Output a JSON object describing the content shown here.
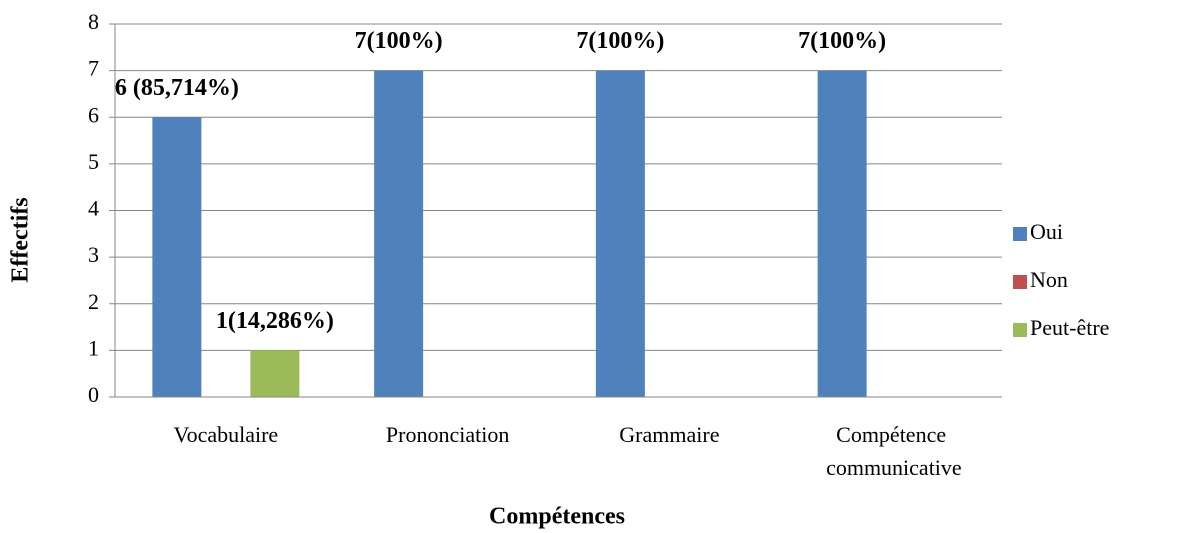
{
  "chart_data": {
    "type": "bar",
    "x_label": "Compétences",
    "y_label": "Effectifs",
    "categories": [
      "Vocabulaire",
      "Prononciation",
      "Grammaire",
      "Compétence communicative"
    ],
    "series": [
      {
        "name": "Oui",
        "color": "#4f81bd",
        "values": [
          6,
          7,
          7,
          7
        ],
        "value_labels": [
          "6 (85,714%)",
          "7(100%)",
          "7(100%)",
          "7(100%)"
        ]
      },
      {
        "name": "Non",
        "color": "#c0504d",
        "values": [
          0,
          0,
          0,
          0
        ]
      },
      {
        "name": "Peut-être",
        "color": "#9bbb59",
        "values": [
          1,
          0,
          0,
          0
        ],
        "value_labels": [
          "1(14,286%)",
          null,
          null,
          null
        ]
      }
    ],
    "ylim": [
      0,
      8
    ],
    "yticks": [
      0,
      1,
      2,
      3,
      4,
      5,
      6,
      7,
      8
    ],
    "grid": true,
    "legend": "right"
  }
}
